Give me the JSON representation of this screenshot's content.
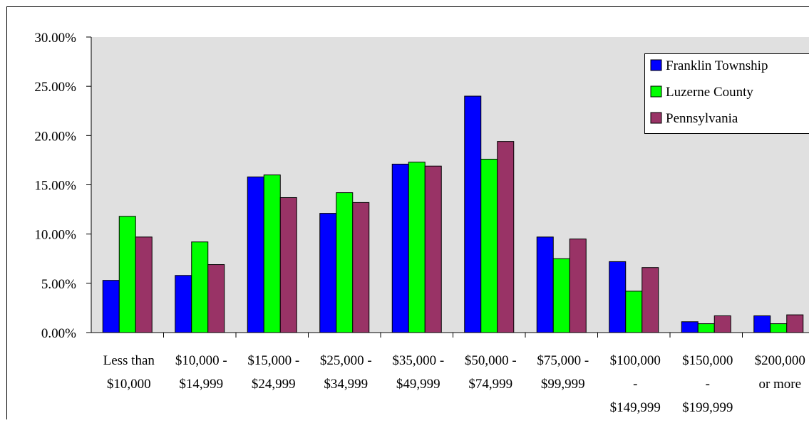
{
  "chart_data": {
    "type": "bar",
    "title": "",
    "xlabel": "",
    "ylabel": "",
    "ylim": [
      0,
      30
    ],
    "y_tick_labels": [
      "0.00%",
      "5.00%",
      "10.00%",
      "15.00%",
      "20.00%",
      "25.00%",
      "30.00%"
    ],
    "y_format": "percent",
    "grid": false,
    "legend_position": "top-right",
    "plot_background": "#e0e0e0",
    "categories": [
      [
        "Less than",
        "$10,000"
      ],
      [
        "$10,000 -",
        "$14,999"
      ],
      [
        "$15,000 -",
        "$24,999"
      ],
      [
        "$25,000 -",
        "$34,999"
      ],
      [
        "$35,000 -",
        "$49,999"
      ],
      [
        "$50,000 -",
        "$74,999"
      ],
      [
        "$75,000 -",
        "$99,999"
      ],
      [
        "$100,000",
        "-",
        "$149,999"
      ],
      [
        "$150,000",
        "-",
        "$199,999"
      ],
      [
        "$200,000",
        "or more"
      ]
    ],
    "series": [
      {
        "name": "Franklin Township",
        "color": "#0000ff",
        "values": [
          5.3,
          5.8,
          15.8,
          12.1,
          17.1,
          24.0,
          9.7,
          7.2,
          1.1,
          1.7
        ]
      },
      {
        "name": "Luzerne County",
        "color": "#00ff00",
        "values": [
          11.8,
          9.2,
          16.0,
          14.2,
          17.3,
          17.6,
          7.5,
          4.2,
          0.9,
          0.9
        ]
      },
      {
        "name": "Pennsylvania",
        "color": "#993366",
        "values": [
          9.7,
          6.9,
          13.7,
          13.2,
          16.9,
          19.4,
          9.5,
          6.6,
          1.7,
          1.8
        ]
      }
    ]
  }
}
